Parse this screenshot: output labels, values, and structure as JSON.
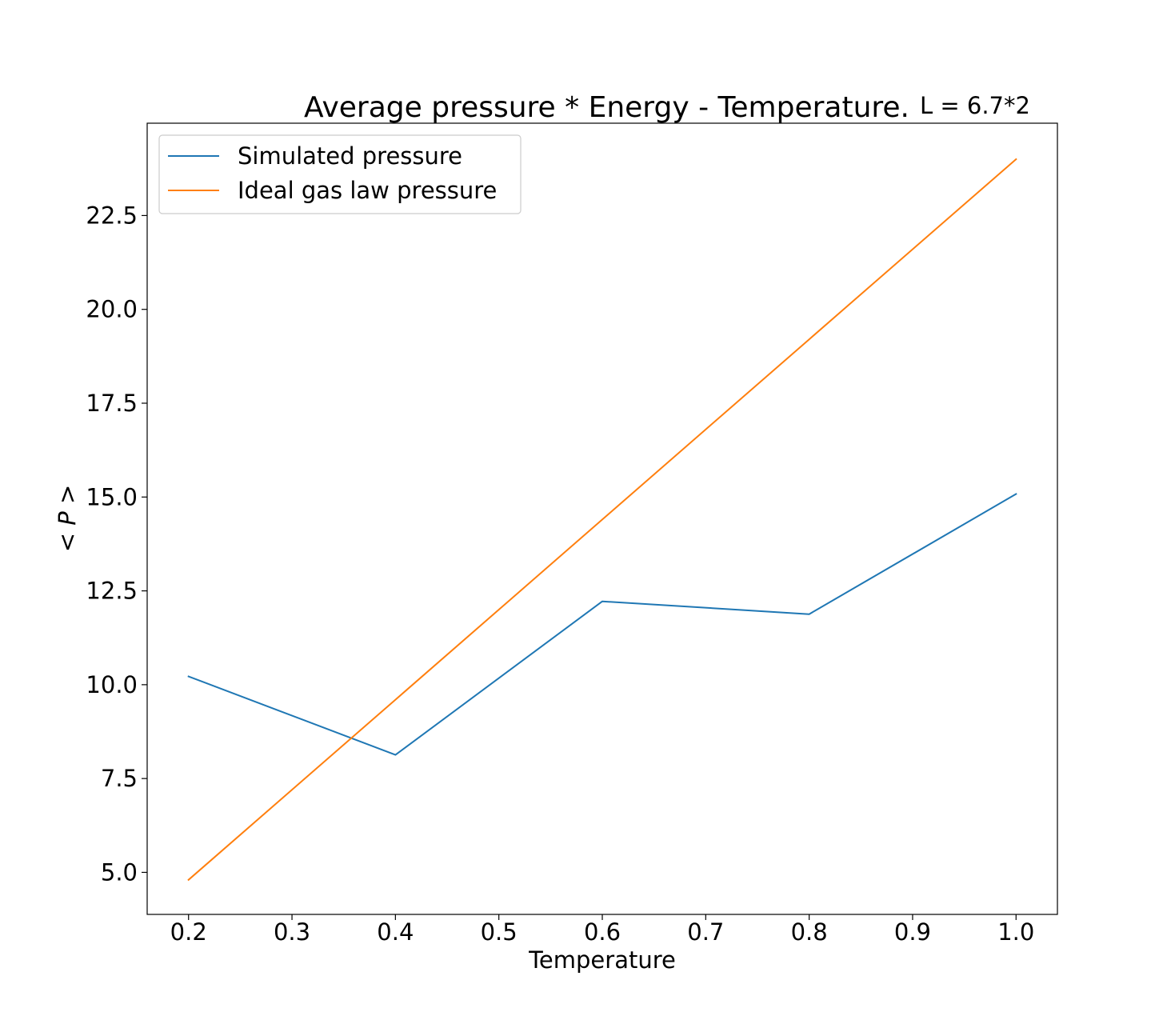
{
  "chart_data": {
    "type": "line",
    "title": "Average pressure * Energy - Temperature.",
    "subtitle": "L = 6.7*2",
    "xlabel": "Temperature",
    "ylabel": "< P >",
    "x": [
      0.2,
      0.4,
      0.6,
      0.8,
      1.0
    ],
    "xlim": [
      0.16,
      1.04
    ],
    "ylim": [
      3.88,
      24.96
    ],
    "xticks": [
      0.2,
      0.3,
      0.4,
      0.5,
      0.6,
      0.7,
      0.8,
      0.9,
      1.0
    ],
    "xtick_labels": [
      "0.2",
      "0.3",
      "0.4",
      "0.5",
      "0.6",
      "0.7",
      "0.8",
      "0.9",
      "1.0"
    ],
    "yticks": [
      5.0,
      7.5,
      10.0,
      12.5,
      15.0,
      17.5,
      20.0,
      22.5
    ],
    "ytick_labels": [
      "5.0",
      "7.5",
      "10.0",
      "12.5",
      "15.0",
      "17.5",
      "20.0",
      "22.5"
    ],
    "grid": false,
    "legend_position": "upper-left",
    "series": [
      {
        "name": "Simulated pressure",
        "color": "#1f77b4",
        "values": [
          10.22,
          8.13,
          12.22,
          11.88,
          15.08
        ]
      },
      {
        "name": "Ideal gas law pressure",
        "color": "#ff7f0e",
        "values": [
          4.8,
          9.6,
          14.4,
          19.2,
          24.0
        ]
      }
    ]
  }
}
